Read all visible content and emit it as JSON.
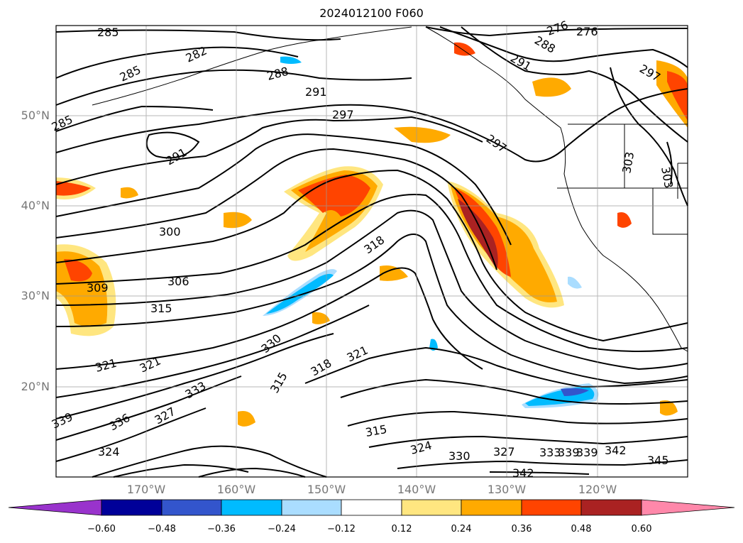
{
  "title": "2024012100 F060",
  "map": {
    "lat_labels": [
      "50°N",
      "40°N",
      "30°N",
      "20°N"
    ],
    "lon_labels": [
      "170°W",
      "160°W",
      "150°W",
      "140°W",
      "130°W",
      "120°W"
    ],
    "contour_labels": [
      "285",
      "282",
      "285",
      "288",
      "291",
      "297",
      "285",
      "291",
      "300",
      "306",
      "309",
      "315",
      "318",
      "330",
      "318",
      "321",
      "321",
      "321",
      "315",
      "327",
      "336",
      "333",
      "339",
      "324",
      "315",
      "324",
      "330",
      "327",
      "333",
      "339",
      "339",
      "342",
      "342",
      "345",
      "297",
      "303",
      "303",
      "291",
      "276",
      "276",
      "297",
      "288"
    ]
  },
  "colorbar": {
    "ticks": [
      "−0.60",
      "−0.48",
      "−0.36",
      "−0.24",
      "−0.12",
      "0.12",
      "0.24",
      "0.36",
      "0.48",
      "0.60"
    ],
    "colors": [
      "#9933cc",
      "#000099",
      "#3355cc",
      "#00bbff",
      "#aaddff",
      "#ffffff",
      "#ffe680",
      "#ffaa00",
      "#ff4400",
      "#aa2222",
      "#ff88aa"
    ]
  }
}
